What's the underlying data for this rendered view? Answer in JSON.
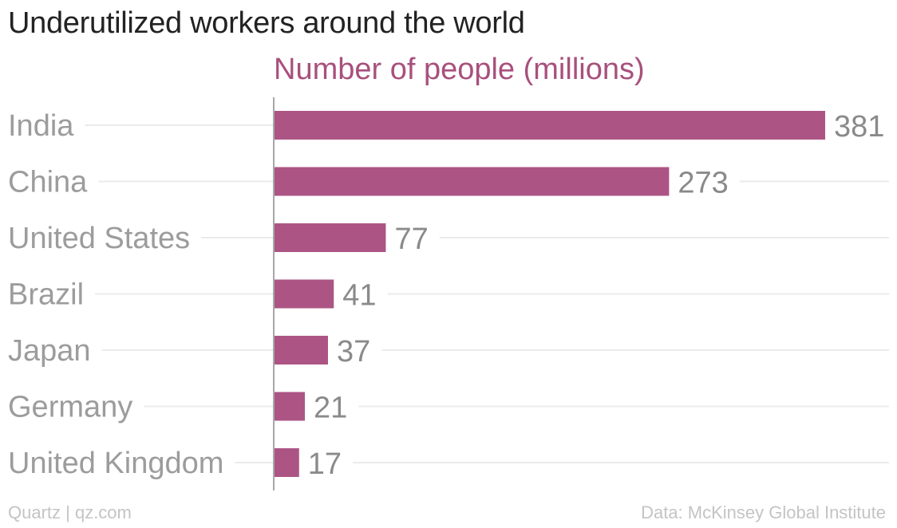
{
  "header": {
    "title": "Underutilized workers around the world"
  },
  "chart_data": {
    "type": "bar",
    "orientation": "horizontal",
    "title": "Underutilized workers around the world",
    "subtitle": "Number of people (millions)",
    "categories": [
      "India",
      "China",
      "United States",
      "Brazil",
      "Japan",
      "Germany",
      "United Kingdom"
    ],
    "values": [
      381,
      273,
      77,
      41,
      37,
      21,
      17
    ],
    "data_labels": [
      "381",
      "273",
      "77",
      "41",
      "37",
      "21",
      "17"
    ],
    "xlabel": "",
    "ylabel": "",
    "xlim": [
      0,
      381
    ],
    "grid": true,
    "legend": "none",
    "colors": {
      "bar": "#AC5584",
      "subtitle": "#A8507D",
      "category_label": "#9c9c9c",
      "value_label": "#8a8a8a",
      "gridline": "#ebebeb",
      "axis": "#8a8a8a"
    }
  },
  "footer": {
    "left": "Quartz | qz.com",
    "right": "Data: McKinsey Global Institute"
  }
}
